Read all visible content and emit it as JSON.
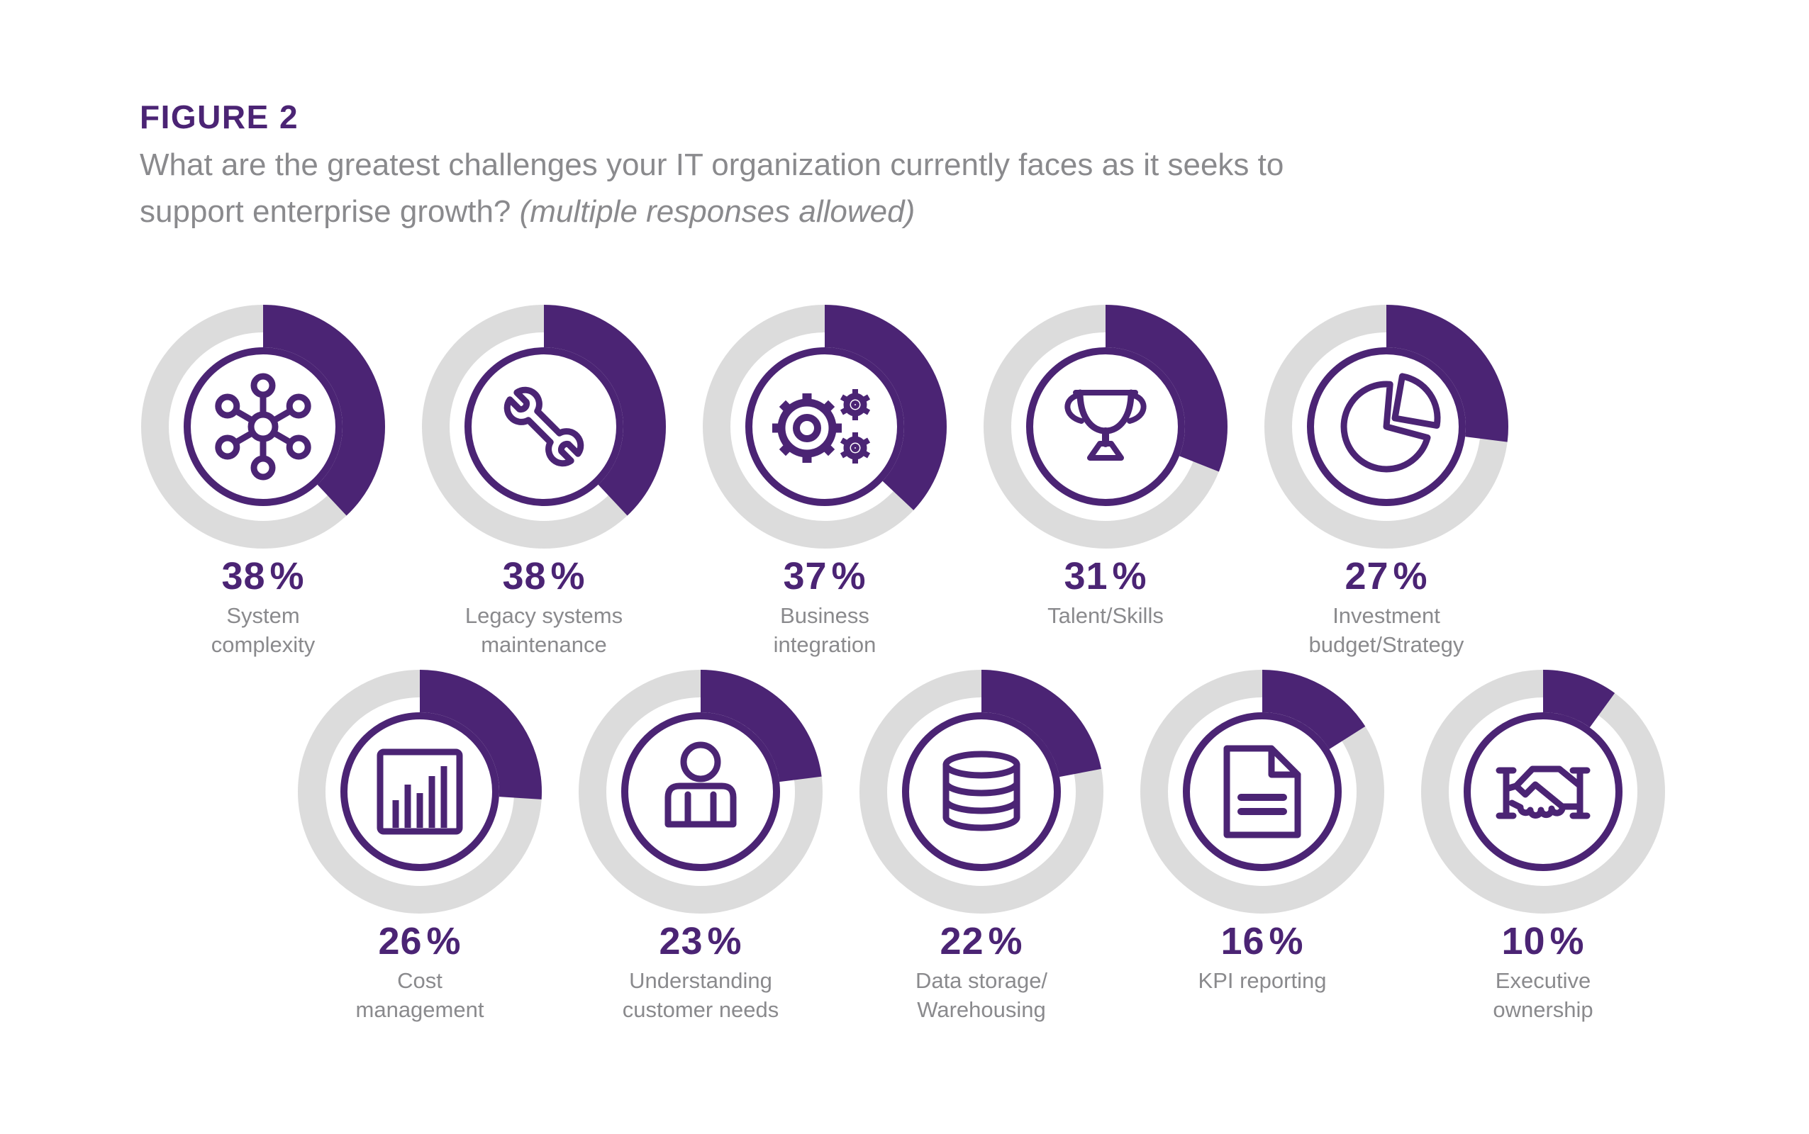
{
  "page": {
    "background": "#FFFFFF"
  },
  "header": {
    "figure_label": "FIGURE 2",
    "question_line1": "What are the greatest challenges your IT organization currently faces as it seeks to",
    "question_line2": "support enterprise growth? ",
    "question_note": "(multiple responses allowed)"
  },
  "colors": {
    "purple": "#4B2474",
    "track_gray": "#DCDCDC",
    "text_gray": "#8A8A8D",
    "background": "#FFFFFF"
  },
  "chart_data": {
    "type": "pie",
    "variant": "donut-icon-grid",
    "unit": "%",
    "arc_start": "top",
    "arc_direction": "clockwise",
    "legend_position": "below-each-donut",
    "categories": [
      "System complexity",
      "Legacy systems maintenance",
      "Business integration",
      "Talent/Skills",
      "Investment budget/Strategy",
      "Cost management",
      "Understanding customer needs",
      "Data storage/Warehousing",
      "KPI reporting",
      "Executive ownership"
    ],
    "values": [
      38,
      38,
      37,
      31,
      27,
      26,
      23,
      22,
      16,
      10
    ],
    "rows": [
      {
        "items": [
          {
            "label": "System complexity",
            "label_display": "System\ncomplexity",
            "value": 38,
            "icon": "network-hub-icon"
          },
          {
            "label": "Legacy systems maintenance",
            "label_display": "Legacy systems\nmaintenance",
            "value": 38,
            "icon": "wrench-icon"
          },
          {
            "label": "Business integration",
            "label_display": "Business\nintegration",
            "value": 37,
            "icon": "gears-icon"
          },
          {
            "label": "Talent/Skills",
            "label_display": "Talent/Skills",
            "value": 31,
            "icon": "trophy-icon"
          },
          {
            "label": "Investment budget/Strategy",
            "label_display": "Investment\nbudget/Strategy",
            "value": 27,
            "icon": "pie-chart-icon"
          }
        ]
      },
      {
        "items": [
          {
            "label": "Cost management",
            "label_display": "Cost\nmanagement",
            "value": 26,
            "icon": "bar-chart-icon"
          },
          {
            "label": "Understanding customer needs",
            "label_display": "Understanding\ncustomer needs",
            "value": 23,
            "icon": "person-icon"
          },
          {
            "label": "Data storage/Warehousing",
            "label_display": "Data storage/\nWarehousing",
            "value": 22,
            "icon": "database-icon"
          },
          {
            "label": "KPI reporting",
            "label_display": "KPI reporting",
            "value": 16,
            "icon": "document-icon"
          },
          {
            "label": "Executive ownership",
            "label_display": "Executive\nownership",
            "value": 10,
            "icon": "handshake-icon"
          }
        ]
      }
    ]
  }
}
